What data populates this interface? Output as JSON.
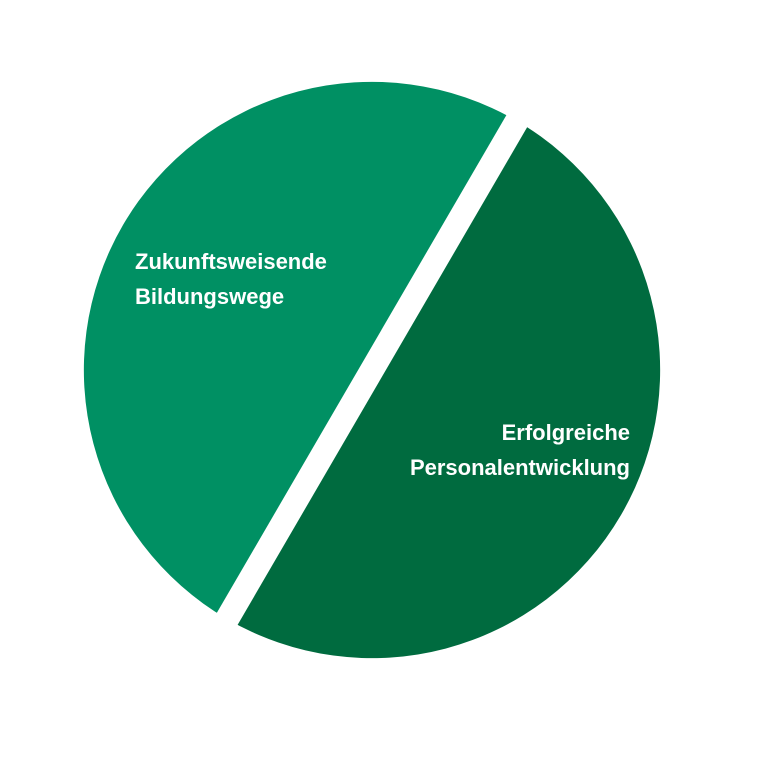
{
  "segments": [
    {
      "lines": [
        "Zukunftsweisende",
        "Bildungswege"
      ],
      "color": "#009063"
    },
    {
      "lines": [
        "Erfolgreiche",
        "Personalentwicklung"
      ],
      "color": "#006b3f"
    }
  ],
  "divider_color": "#ffffff"
}
